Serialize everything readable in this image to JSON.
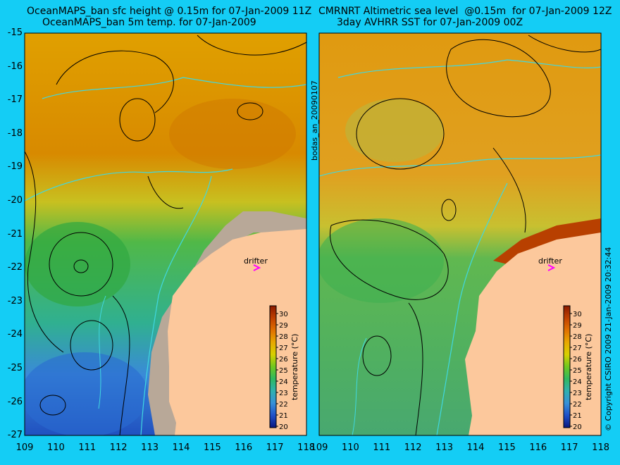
{
  "left_panel": {
    "title_line1": "OceanMAPS_ban sfc height @ 0.15m for 07-Jan-2009 11Z",
    "title_line2": "OceanMAPS_ban 5m temp. for 07-Jan-2009"
  },
  "right_panel": {
    "title_line1": "CMRNRT Altimetric sea level  @0.15m  for 07-Jan-2009 12Z",
    "title_line2": "3day AVHRR SST for 07-Jan-2009 00Z"
  },
  "side_label_mid": "bodas_an_20090107",
  "side_label_right": "© Copyright CSIRO 2009   21-Jan-2009 20:32:44",
  "y_ticks": [
    "-15",
    "-16",
    "-17",
    "-18",
    "-19",
    "-20",
    "-21",
    "-22",
    "-23",
    "-24",
    "-25",
    "-26",
    "-27"
  ],
  "x_ticks": [
    "109",
    "110",
    "111",
    "112",
    "113",
    "114",
    "115",
    "116",
    "117",
    "118"
  ],
  "drifter_label": "drifter",
  "colorbar": {
    "title": "temperature (°C)",
    "ticks": [
      "30",
      "29",
      "28",
      "27",
      "26",
      "25",
      "24",
      "23",
      "22",
      "21",
      "20"
    ],
    "colors": [
      "#8a1a00",
      "#b83a00",
      "#d85c00",
      "#e88a00",
      "#e8b400",
      "#c8d000",
      "#7cc820",
      "#3cb84c",
      "#30b4a0",
      "#3aa0d0",
      "#2a70d8",
      "#1840b0",
      "#0a1880"
    ]
  },
  "colors": {
    "background": "#14cdf5",
    "land": "#fcc89c",
    "shelf": "#b8a898",
    "contour_black": "#000000",
    "contour_cyan": "#40d8e0",
    "drifter": "#ff00ff"
  }
}
